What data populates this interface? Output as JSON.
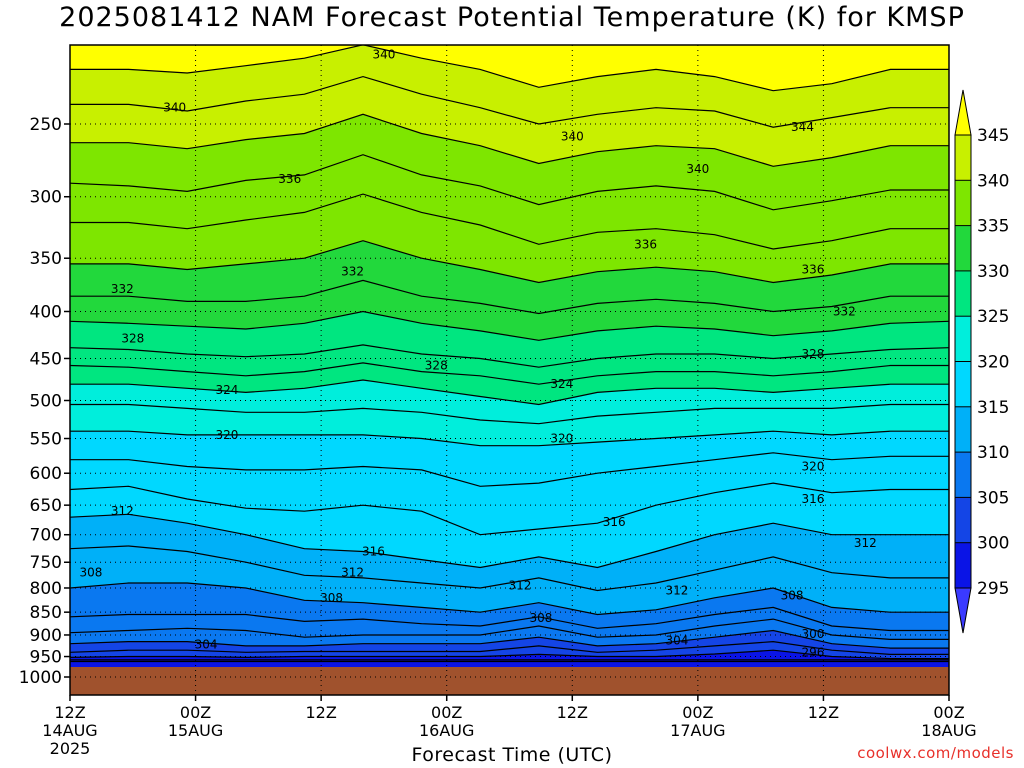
{
  "title": "2025081412 NAM Forecast Potential Temperature (K) for KMSP",
  "xlabel": "Forecast Time (UTC)",
  "credit": "coolwx.com/models",
  "chart_data": {
    "type": "heatmap",
    "title": "2025081412 NAM Forecast Potential Temperature (K) for KMSP",
    "xlabel": "Forecast Time (UTC)",
    "ylabel": "",
    "x_range_hours": [
      0,
      84
    ],
    "y_axis": {
      "scale": "pressure",
      "range_hPa": [
        1000,
        200
      ],
      "inverted": true
    },
    "y_ticks": [
      250,
      300,
      350,
      400,
      450,
      500,
      550,
      600,
      650,
      700,
      750,
      800,
      850,
      900,
      950,
      1000
    ],
    "x_ticks": [
      {
        "hour": 0,
        "lines": [
          "12Z",
          "14AUG",
          "2025"
        ]
      },
      {
        "hour": 12,
        "lines": [
          "00Z",
          "15AUG"
        ]
      },
      {
        "hour": 24,
        "lines": [
          "12Z"
        ]
      },
      {
        "hour": 36,
        "lines": [
          "00Z",
          "16AUG"
        ]
      },
      {
        "hour": 48,
        "lines": [
          "12Z"
        ]
      },
      {
        "hour": 60,
        "lines": [
          "00Z",
          "17AUG"
        ]
      },
      {
        "hour": 72,
        "lines": [
          "12Z"
        ]
      },
      {
        "hour": 84,
        "lines": [
          "00Z",
          "18AUG"
        ]
      }
    ],
    "colorbar": {
      "ticks": [
        345,
        340,
        335,
        330,
        325,
        320,
        315,
        310,
        305,
        300,
        295
      ],
      "bands": [
        {
          "from": 345,
          "to": 350,
          "color": "#ffff00"
        },
        {
          "from": 340,
          "to": 345,
          "color": "#c8f000"
        },
        {
          "from": 335,
          "to": 340,
          "color": "#7ee600"
        },
        {
          "from": 330,
          "to": 335,
          "color": "#22d83c"
        },
        {
          "from": 325,
          "to": 330,
          "color": "#00e680"
        },
        {
          "from": 320,
          "to": 325,
          "color": "#00eedc"
        },
        {
          "from": 315,
          "to": 320,
          "color": "#00d8ff"
        },
        {
          "from": 310,
          "to": 315,
          "color": "#00b0f8"
        },
        {
          "from": 305,
          "to": 310,
          "color": "#0a78f0"
        },
        {
          "from": 300,
          "to": 305,
          "color": "#1445e6"
        },
        {
          "from": 295,
          "to": 300,
          "color": "#0a14e6"
        },
        {
          "from": 290,
          "to": 295,
          "color": "#3a3aff"
        }
      ]
    },
    "ground_color": "#a0522d",
    "contour_interval": 2,
    "contours": [
      {
        "value": 296,
        "pressure": [
          962,
          962,
          962,
          962,
          962,
          962,
          962,
          962,
          962,
          962,
          962,
          962,
          962,
          962,
          962,
          962
        ],
        "label": null
      },
      {
        "value": 298,
        "pressure": [
          958,
          958,
          958,
          958,
          958,
          958,
          958,
          958,
          958,
          958,
          958,
          958,
          958,
          958,
          958,
          958
        ],
        "label": null
      },
      {
        "value": 300,
        "pressure": [
          952,
          950,
          950,
          952,
          950,
          950,
          950,
          950,
          945,
          950,
          950,
          944,
          935,
          950,
          955,
          955
        ],
        "label": null
      },
      {
        "value": 302,
        "pressure": [
          940,
          935,
          935,
          940,
          938,
          938,
          938,
          938,
          925,
          940,
          935,
          925,
          915,
          935,
          945,
          945
        ],
        "label": null
      },
      {
        "value": 304,
        "pressure": [
          920,
          915,
          915,
          925,
          925,
          920,
          920,
          920,
          905,
          925,
          920,
          905,
          890,
          920,
          930,
          930
        ],
        "label": {
          "text": "304",
          "hour": 13,
          "pressure": 922
        }
      },
      {
        "value": 306,
        "pressure": [
          895,
          890,
          885,
          890,
          905,
          900,
          900,
          900,
          880,
          905,
          900,
          880,
          865,
          900,
          910,
          910
        ],
        "label": null
      },
      {
        "value": 308,
        "pressure": [
          860,
          855,
          855,
          855,
          870,
          865,
          875,
          880,
          860,
          885,
          875,
          855,
          840,
          880,
          890,
          890
        ],
        "label": {
          "text": "308",
          "hour": 2,
          "pressure": 770
        }
      },
      {
        "value": 310,
        "pressure": [
          800,
          790,
          790,
          800,
          825,
          830,
          840,
          850,
          830,
          855,
          845,
          820,
          800,
          840,
          850,
          850
        ],
        "label": null
      },
      {
        "value": 312,
        "pressure": [
          725,
          720,
          730,
          750,
          775,
          780,
          790,
          800,
          780,
          805,
          790,
          765,
          740,
          770,
          780,
          780
        ],
        "label": {
          "text": "312",
          "hour": 5,
          "pressure": 660
        }
      },
      {
        "value": 314,
        "pressure": [
          670,
          665,
          680,
          700,
          725,
          730,
          745,
          760,
          740,
          760,
          730,
          700,
          680,
          700,
          700,
          700
        ],
        "label": null
      },
      {
        "value": 316,
        "pressure": [
          625,
          620,
          640,
          655,
          660,
          650,
          660,
          700,
          690,
          680,
          650,
          630,
          615,
          630,
          625,
          625
        ],
        "label": {
          "text": "316",
          "hour": 52,
          "pressure": 678
        }
      },
      {
        "value": 318,
        "pressure": [
          580,
          580,
          590,
          595,
          595,
          590,
          595,
          620,
          615,
          600,
          590,
          580,
          570,
          580,
          575,
          575
        ],
        "label": null
      },
      {
        "value": 320,
        "pressure": [
          540,
          540,
          545,
          545,
          545,
          545,
          550,
          560,
          560,
          555,
          550,
          545,
          540,
          545,
          540,
          540
        ],
        "label": {
          "text": "320",
          "hour": 15,
          "pressure": 545
        }
      },
      {
        "value": 322,
        "pressure": [
          505,
          505,
          510,
          515,
          515,
          510,
          515,
          525,
          530,
          520,
          515,
          510,
          510,
          510,
          505,
          505
        ],
        "label": null
      },
      {
        "value": 324,
        "pressure": [
          480,
          480,
          485,
          490,
          485,
          475,
          485,
          495,
          505,
          490,
          485,
          485,
          490,
          485,
          480,
          480
        ],
        "label": {
          "text": "324",
          "hour": 15,
          "pressure": 487
        }
      },
      {
        "value": 326,
        "pressure": [
          458,
          460,
          465,
          470,
          465,
          455,
          465,
          470,
          480,
          470,
          465,
          465,
          470,
          465,
          458,
          458
        ],
        "label": null
      },
      {
        "value": 328,
        "pressure": [
          438,
          440,
          445,
          448,
          445,
          435,
          445,
          450,
          460,
          450,
          445,
          445,
          450,
          445,
          440,
          438
        ],
        "label": {
          "text": "328",
          "hour": 6,
          "pressure": 428
        }
      },
      {
        "value": 330,
        "pressure": [
          410,
          412,
          415,
          418,
          412,
          400,
          412,
          420,
          430,
          420,
          415,
          418,
          425,
          420,
          412,
          410
        ],
        "label": null
      },
      {
        "value": 332,
        "pressure": [
          385,
          385,
          390,
          390,
          385,
          370,
          385,
          392,
          402,
          392,
          388,
          392,
          400,
          395,
          385,
          385
        ],
        "label": {
          "text": "332",
          "hour": 5,
          "pressure": 378
        }
      },
      {
        "value": 334,
        "pressure": [
          355,
          355,
          360,
          355,
          350,
          335,
          350,
          360,
          372,
          362,
          358,
          362,
          372,
          365,
          355,
          355
        ],
        "label": null
      },
      {
        "value": 336,
        "pressure": [
          320,
          320,
          325,
          318,
          312,
          298,
          312,
          322,
          338,
          328,
          325,
          330,
          342,
          335,
          325,
          325
        ],
        "label": {
          "text": "336",
          "hour": 21,
          "pressure": 287
        }
      },
      {
        "value": 338,
        "pressure": [
          290,
          292,
          296,
          288,
          284,
          270,
          284,
          292,
          306,
          296,
          292,
          296,
          310,
          303,
          295,
          295
        ],
        "label": null
      },
      {
        "value": 340,
        "pressure": [
          262,
          262,
          266,
          260,
          256,
          244,
          256,
          264,
          276,
          268,
          264,
          266,
          278,
          272,
          264,
          264
        ],
        "label": {
          "text": "340",
          "hour": 10,
          "pressure": 240
        }
      },
      {
        "value": 342,
        "pressure": [
          238,
          238,
          242,
          236,
          232,
          222,
          232,
          240,
          250,
          244,
          240,
          242,
          252,
          246,
          240,
          240
        ],
        "label": null
      },
      {
        "value": 344,
        "pressure": [
          218,
          218,
          220,
          216,
          212,
          205,
          212,
          218,
          228,
          222,
          218,
          222,
          230,
          226,
          218,
          218
        ],
        "label": {
          "text": "344",
          "hour": 70,
          "pressure": 252
        }
      }
    ],
    "extra_labels": [
      {
        "text": "340",
        "hour": 30,
        "pressure": 210
      },
      {
        "text": "340",
        "hour": 48,
        "pressure": 258
      },
      {
        "text": "340",
        "hour": 60,
        "pressure": 280
      },
      {
        "text": "332",
        "hour": 27,
        "pressure": 362
      },
      {
        "text": "332",
        "hour": 74,
        "pressure": 400
      },
      {
        "text": "336",
        "hour": 55,
        "pressure": 338
      },
      {
        "text": "336",
        "hour": 71,
        "pressure": 360
      },
      {
        "text": "328",
        "hour": 35,
        "pressure": 458
      },
      {
        "text": "328",
        "hour": 71,
        "pressure": 445
      },
      {
        "text": "324",
        "hour": 47,
        "pressure": 480
      },
      {
        "text": "320",
        "hour": 47,
        "pressure": 550
      },
      {
        "text": "320",
        "hour": 71,
        "pressure": 590
      },
      {
        "text": "316",
        "hour": 29,
        "pressure": 730
      },
      {
        "text": "316",
        "hour": 71,
        "pressure": 640
      },
      {
        "text": "312",
        "hour": 27,
        "pressure": 770
      },
      {
        "text": "312",
        "hour": 43,
        "pressure": 795
      },
      {
        "text": "312",
        "hour": 58,
        "pressure": 805
      },
      {
        "text": "312",
        "hour": 76,
        "pressure": 715
      },
      {
        "text": "308",
        "hour": 25,
        "pressure": 820
      },
      {
        "text": "308",
        "hour": 45,
        "pressure": 862
      },
      {
        "text": "308",
        "hour": 69,
        "pressure": 815
      },
      {
        "text": "304",
        "hour": 58,
        "pressure": 912
      },
      {
        "text": "300",
        "hour": 71,
        "pressure": 898
      },
      {
        "text": "296",
        "hour": 71,
        "pressure": 940
      }
    ]
  }
}
